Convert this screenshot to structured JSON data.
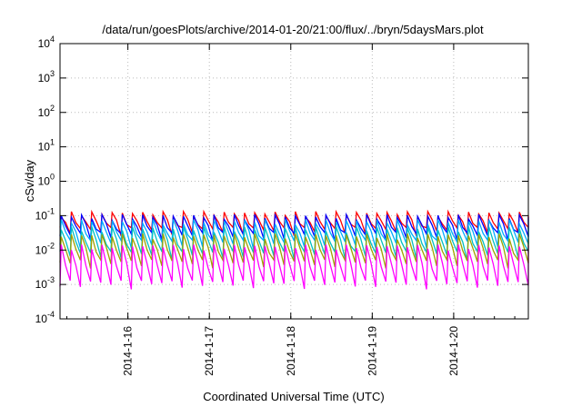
{
  "chart_data": {
    "type": "line",
    "title": "/data/run/goesPlots/archive/2014-01-20/21:00/flux/../bryn/5daysMars.plot",
    "xlabel": "Coordinated Universal Time (UTC)",
    "ylabel": "cSv/day",
    "y_scale": "log",
    "ylim": [
      0.0001,
      10000
    ],
    "xlim": [
      "2014-01-15 04:00",
      "2014-01-20 22:00"
    ],
    "grid": true,
    "legend": "none",
    "y_ticks": [
      {
        "base": "10",
        "exp": "-4",
        "value": 0.0001
      },
      {
        "base": "10",
        "exp": "-3",
        "value": 0.001
      },
      {
        "base": "10",
        "exp": "-2",
        "value": 0.01
      },
      {
        "base": "10",
        "exp": "-1",
        "value": 0.1
      },
      {
        "base": "10",
        "exp": "0",
        "value": 1
      },
      {
        "base": "10",
        "exp": "1",
        "value": 10
      },
      {
        "base": "10",
        "exp": "2",
        "value": 100
      },
      {
        "base": "10",
        "exp": "3",
        "value": 1000
      },
      {
        "base": "10",
        "exp": "4",
        "value": 10000
      }
    ],
    "x_ticks": [
      {
        "label": "2014-1-16",
        "value": "2014-01-16 00:00"
      },
      {
        "label": "2014-1-17",
        "value": "2014-01-17 00:00"
      },
      {
        "label": "2014-1-18",
        "value": "2014-01-18 00:00"
      },
      {
        "label": "2014-1-19",
        "value": "2014-01-19 00:00"
      },
      {
        "label": "2014-1-20",
        "value": "2014-01-20 00:00"
      }
    ],
    "series_pattern": "sawtooth, period about 3 hours, each cycle rises sharply to a peak then decays",
    "series": [
      {
        "color": "#ff0000",
        "peak": 0.11,
        "trough": 0.035
      },
      {
        "color": "#0000ff",
        "peak": 0.09,
        "trough": 0.025
      },
      {
        "color": "#00aaff",
        "peak": 0.065,
        "trough": 0.015
      },
      {
        "color": "#00c0c0",
        "peak": 0.04,
        "trough": 0.007
      },
      {
        "color": "#a0a000",
        "peak": 0.025,
        "trough": 0.004
      },
      {
        "color": "#ff00ff",
        "peak": 0.012,
        "trough": 0.001
      }
    ]
  }
}
